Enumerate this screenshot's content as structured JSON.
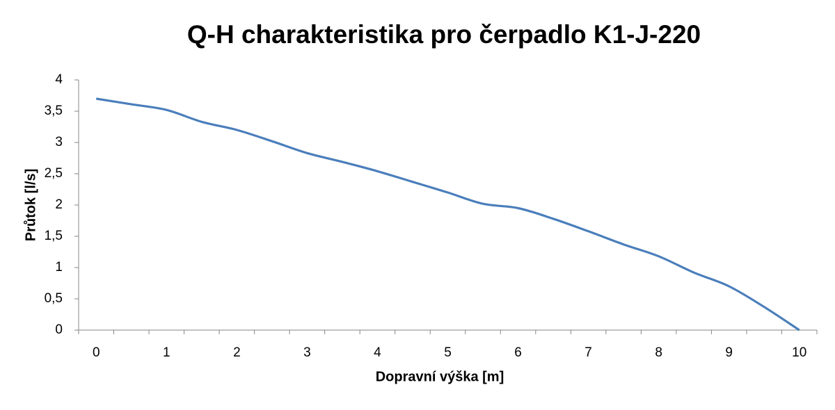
{
  "chart_data": {
    "type": "line",
    "title": "Q-H charakteristika pro čerpadlo K1-J-220",
    "x_label": "Dopravní výška [m]",
    "y_label": "Průtok [l/s]",
    "categories": [
      "0",
      null,
      "1",
      null,
      "2",
      null,
      "3",
      null,
      "4",
      null,
      "5",
      null,
      "6",
      null,
      "7",
      null,
      "8",
      null,
      "9",
      null,
      "10"
    ],
    "series": [
      {
        "name": "Průtok",
        "color": "#4a7ebb",
        "values": [
          3.7,
          3.61,
          3.52,
          3.33,
          3.2,
          3.02,
          2.83,
          2.69,
          2.54,
          2.37,
          2.2,
          2.02,
          1.95,
          1.78,
          1.58,
          1.37,
          1.18,
          0.92,
          0.7,
          0.37,
          0
        ]
      }
    ],
    "ylim": [
      0,
      4
    ],
    "yticks": [
      0,
      {
        "value": 0.5,
        "label": "0,5"
      },
      1,
      {
        "value": 1.5,
        "label": "1,5"
      },
      2,
      {
        "value": 2.5,
        "label": "2,5"
      },
      3,
      {
        "value": 3.5,
        "label": "3,5"
      },
      4
    ],
    "grid": false,
    "smooth": true
  }
}
